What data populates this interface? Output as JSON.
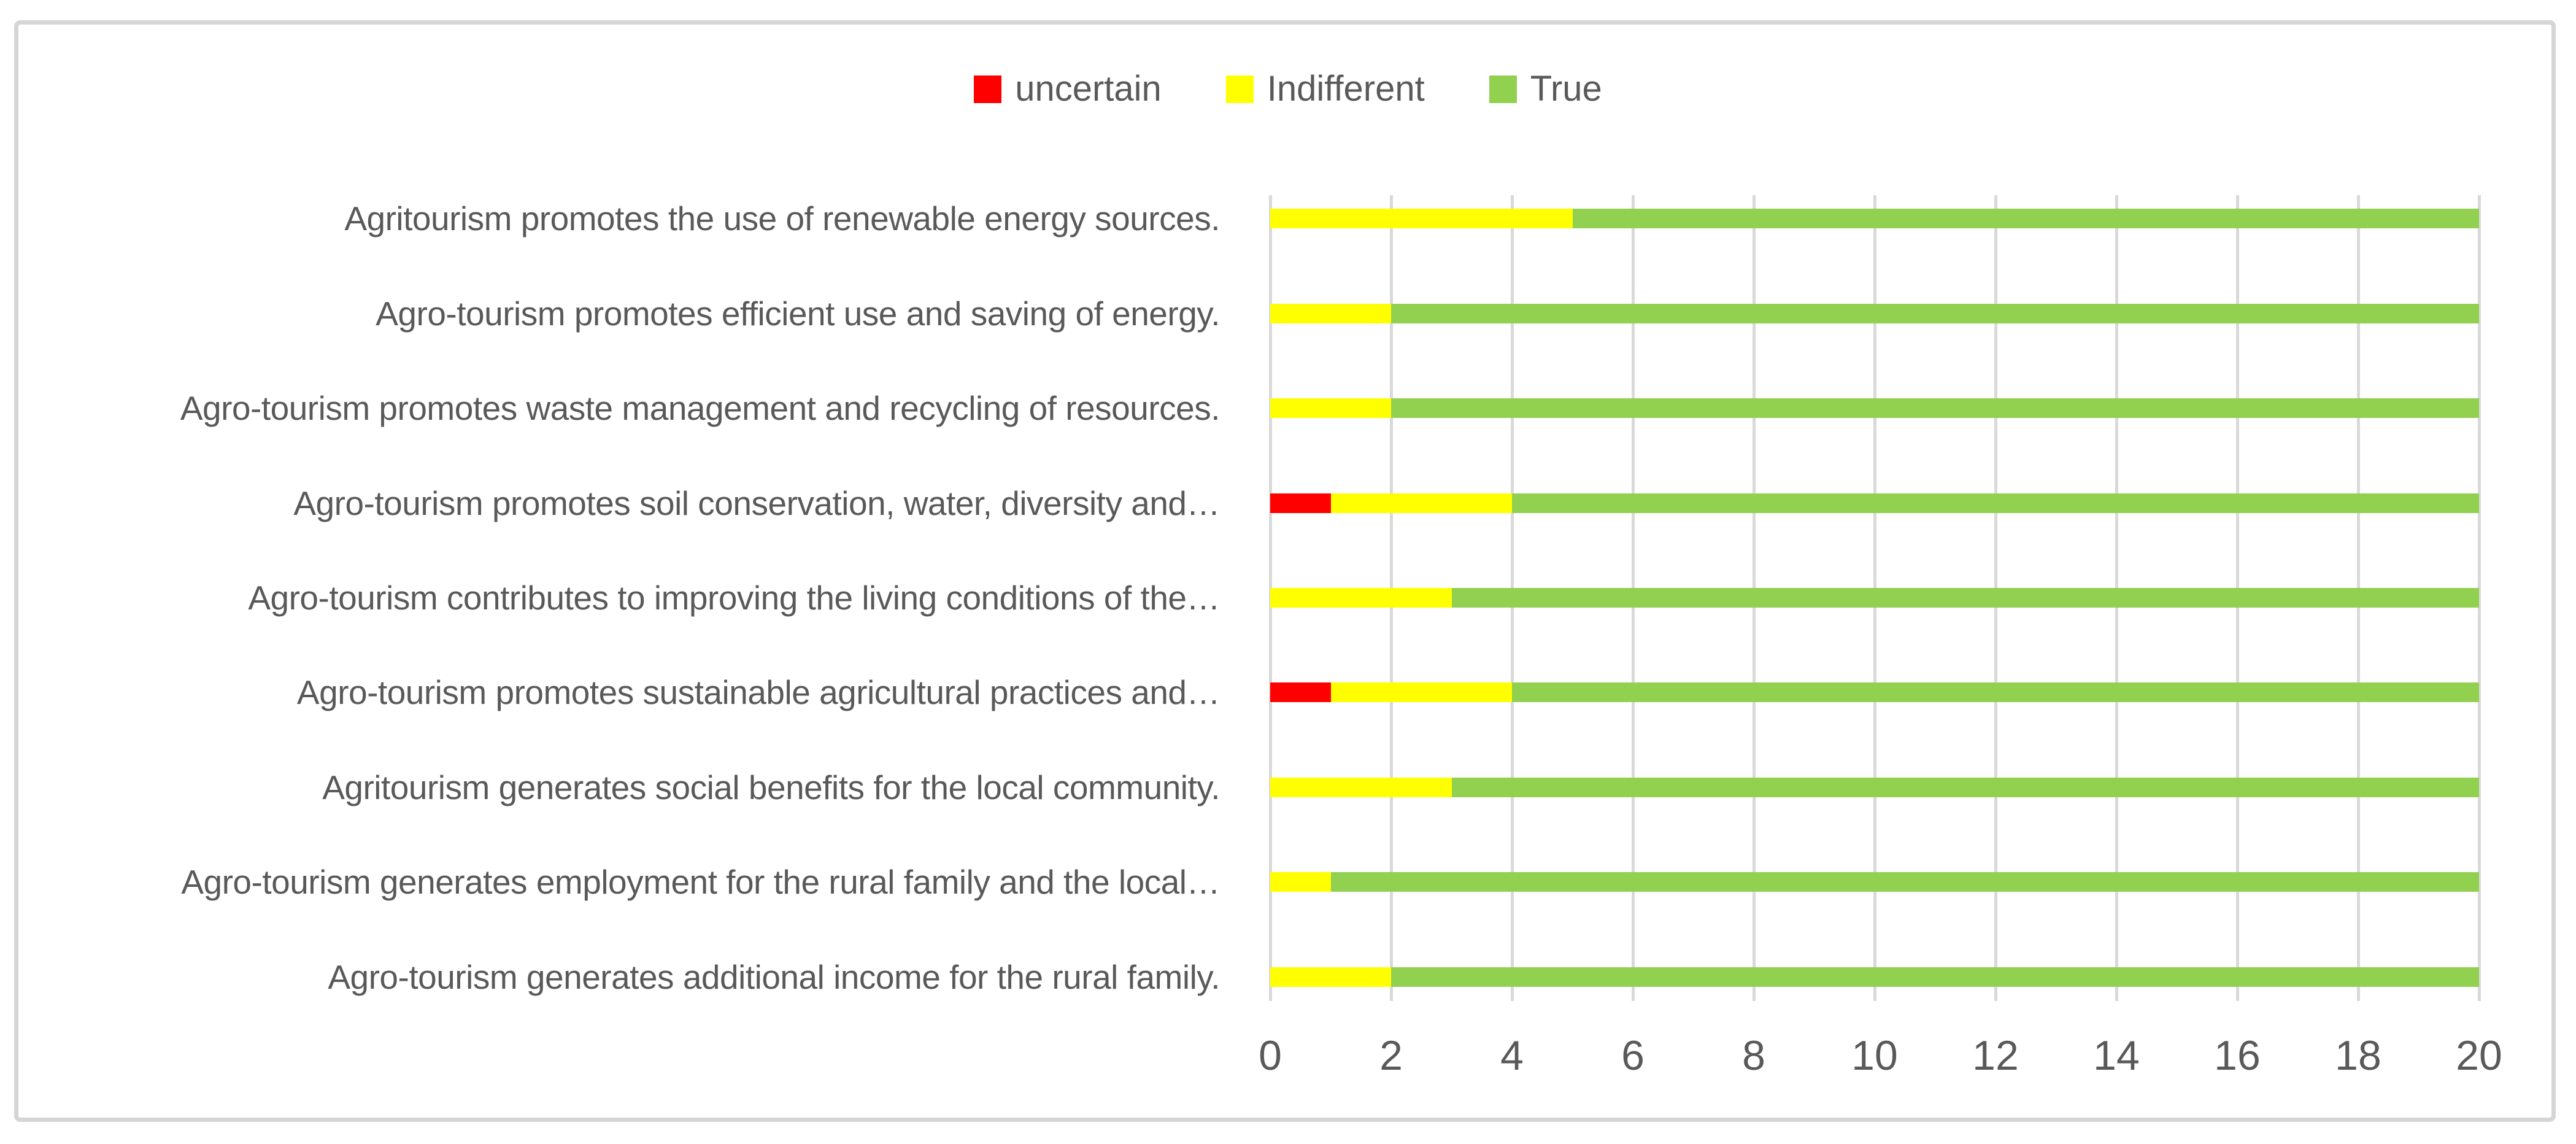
{
  "chart_data": {
    "type": "bar",
    "orientation": "horizontal",
    "stacked": true,
    "title": "",
    "categories": [
      "Agritourism promotes the use of renewable energy sources.",
      "Agro-tourism promotes efficient use and saving of energy.",
      "Agro-tourism promotes waste management and recycling of resources.",
      "Agro-tourism promotes soil conservation, water, diversity and…",
      "Agro-tourism contributes to improving the living conditions of the…",
      "Agro-tourism promotes sustainable agricultural practices and…",
      "Agritourism generates social benefits for the local community.",
      "Agro-tourism generates employment for the rural family and the local…",
      "Agro-tourism generates additional income for the rural family."
    ],
    "series": [
      {
        "name": "uncertain",
        "color": "#FF0000",
        "values": [
          0,
          0,
          0,
          1,
          0,
          1,
          0,
          0,
          0
        ]
      },
      {
        "name": "Indifferent",
        "color": "#FFFF00",
        "values": [
          5,
          2,
          2,
          3,
          3,
          3,
          3,
          1,
          2
        ]
      },
      {
        "name": "True",
        "color": "#92D050",
        "values": [
          15,
          18,
          18,
          16,
          17,
          16,
          17,
          19,
          18
        ]
      }
    ],
    "xlabel": "",
    "ylabel": "",
    "xlim": [
      0,
      20
    ],
    "x_ticks": [
      "0",
      "2",
      "4",
      "6",
      "8",
      "10",
      "12",
      "14",
      "16",
      "18",
      "20"
    ],
    "grid": "vertical-gridlines-only",
    "legend_position": "top-center"
  },
  "style": {
    "text_color": "#595959",
    "gridline_color": "#D9D9D9",
    "frame_border_color": "#D5D5D5",
    "background_color": "#FFFFFF"
  }
}
